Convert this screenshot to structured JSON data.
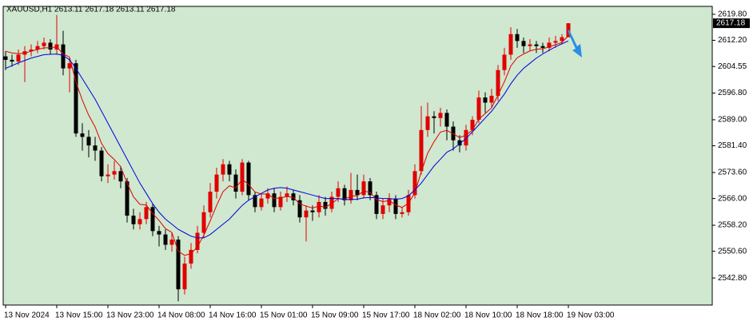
{
  "chart_data": {
    "type": "candlestick",
    "title": "XAUUSD,H1  2613.11 2617.18 2613.11 2617.18",
    "categories": [
      "13 Nov 2024",
      null,
      null,
      null,
      null,
      null,
      null,
      null,
      "13 Nov 15:00",
      null,
      null,
      null,
      null,
      null,
      null,
      null,
      "13 Nov 23:00",
      null,
      null,
      null,
      null,
      null,
      null,
      null,
      "14 Nov 08:00",
      null,
      null,
      null,
      null,
      null,
      null,
      null,
      "14 Nov 16:00",
      null,
      null,
      null,
      null,
      null,
      null,
      null,
      "15 Nov 01:00",
      null,
      null,
      null,
      null,
      null,
      null,
      null,
      "15 Nov 09:00",
      null,
      null,
      null,
      null,
      null,
      null,
      null,
      "15 Nov 17:00",
      null,
      null,
      null,
      null,
      null,
      null,
      null,
      "18 Nov 02:00",
      null,
      null,
      null,
      null,
      null,
      null,
      null,
      "18 Nov 10:00",
      null,
      null,
      null,
      null,
      null,
      null,
      null,
      "18 Nov 18:00",
      null,
      null,
      null,
      null,
      null,
      null,
      null,
      "19 Nov 03:00"
    ],
    "open": [
      2607.5,
      2606.5,
      2606,
      2608,
      2609,
      2609.5,
      2610.5,
      2611.5,
      2609.5,
      2611,
      2604,
      2605.5,
      2585,
      2584,
      2581.5,
      2580,
      2572.5,
      2573,
      2574,
      2571,
      2561,
      2558.5,
      2560,
      2563.5,
      2556.5,
      2555.5,
      2552.5,
      2554,
      2539.5,
      2547,
      2551,
      2556,
      2562,
      2568,
      2573,
      2576,
      2573,
      2568,
      2576.5,
      2567,
      2563.5,
      2566,
      2567.5,
      2563.5,
      2566.5,
      2567.5,
      2565.5,
      2560.5,
      2562.5,
      2562,
      2565,
      2563,
      2566.5,
      2569,
      2565.5,
      2568.5,
      2567,
      2571,
      2567,
      2561.5,
      2564,
      2566,
      2561.5,
      2562,
      2567,
      2574,
      2586,
      2590,
      2589.5,
      2591,
      2587,
      2583,
      2581.5,
      2586,
      2589,
      2595.5,
      2594,
      2596,
      2603.5,
      2608,
      2614,
      2612,
      2610.5,
      2611,
      2610.5,
      2610,
      2611.5,
      2612,
      2613.11
    ],
    "high": [
      2609,
      2608,
      2609.5,
      2610.5,
      2611,
      2612,
      2613,
      2612.5,
      2619.6,
      2615,
      2607,
      2606.5,
      2588,
      2586,
      2584,
      2581,
      2576,
      2577,
      2575.5,
      2572,
      2563,
      2562,
      2565,
      2564.5,
      2558,
      2557,
      2556,
      2555,
      2549,
      2553,
      2558,
      2564,
      2570.5,
      2575,
      2577.5,
      2577,
      2574.5,
      2577.5,
      2577,
      2568,
      2567.5,
      2569,
      2569,
      2568,
      2569.5,
      2568.5,
      2567,
      2564,
      2564,
      2567,
      2566.5,
      2568,
      2571,
      2570,
      2573.5,
      2573,
      2573,
      2572,
      2568,
      2566,
      2567.5,
      2567,
      2563.5,
      2568.5,
      2576,
      2593,
      2594,
      2591.5,
      2592.5,
      2592,
      2588.5,
      2584.5,
      2587.5,
      2590,
      2597.5,
      2597,
      2598,
      2605,
      2610,
      2616,
      2615.5,
      2613,
      2612.5,
      2612,
      2611.5,
      2613,
      2613.5,
      2614,
      2617.18
    ],
    "low": [
      2603.5,
      2604.5,
      2605,
      2600,
      2607.5,
      2608.5,
      2609.5,
      2608,
      2608,
      2602,
      2597,
      2584,
      2580,
      2578,
      2577,
      2571,
      2570.5,
      2571.5,
      2569,
      2559,
      2557,
      2557,
      2558.5,
      2555,
      2552,
      2551,
      2550.5,
      2536,
      2538,
      2545.5,
      2550,
      2554.5,
      2560.5,
      2566,
      2571,
      2571,
      2566,
      2567,
      2565.5,
      2562,
      2562.5,
      2564.5,
      2562,
      2562.5,
      2565,
      2564,
      2559,
      2553.5,
      2559.5,
      2560.5,
      2561,
      2562,
      2565,
      2564,
      2564.5,
      2565.5,
      2566,
      2565.5,
      2560,
      2560,
      2562,
      2560,
      2560.5,
      2561,
      2566,
      2573,
      2584,
      2585,
      2587,
      2583,
      2580,
      2579.5,
      2580,
      2584.5,
      2588,
      2591,
      2592.5,
      2594.5,
      2602,
      2606.5,
      2610,
      2608.5,
      2609,
      2608.5,
      2608.5,
      2609,
      2610,
      2611,
      2613.11
    ],
    "close": [
      2606.5,
      2606,
      2608,
      2609,
      2609.5,
      2610.5,
      2611.5,
      2609.5,
      2611,
      2604,
      2605.5,
      2585,
      2584,
      2581.5,
      2580,
      2572.5,
      2573,
      2574,
      2571,
      2561,
      2558.5,
      2560,
      2563.5,
      2556.5,
      2555.5,
      2552.5,
      2554,
      2539.5,
      2547,
      2551,
      2556,
      2562,
      2568,
      2573,
      2576,
      2573,
      2568,
      2576.5,
      2567,
      2563.5,
      2566,
      2567.5,
      2563.5,
      2566.5,
      2567.5,
      2565.5,
      2560.5,
      2562.5,
      2562,
      2565,
      2563,
      2566.5,
      2569,
      2565.5,
      2568.5,
      2567,
      2571,
      2567,
      2561.5,
      2564,
      2566,
      2561.5,
      2562,
      2567,
      2574,
      2586,
      2590,
      2589.5,
      2591,
      2587,
      2583,
      2581.5,
      2586,
      2589,
      2595.5,
      2594,
      2596,
      2603.5,
      2608,
      2614,
      2612,
      2610.5,
      2611,
      2610.5,
      2610,
      2611.5,
      2612,
      2613.11,
      2617.18
    ],
    "up_color": "#e00000",
    "down_color": "#000000",
    "overlays": [
      {
        "color": "#e00000",
        "values": [
          2609,
          2608.5,
          2608.3,
          2608.5,
          2609,
          2609.5,
          2610,
          2610,
          2610.3,
          2608.2,
          2607.3,
          2600,
          2594.7,
          2590.3,
          2586.9,
          2582.1,
          2579.1,
          2577.4,
          2575.3,
          2570.5,
          2566.5,
          2564.3,
          2564.1,
          2561.6,
          2559.6,
          2557.2,
          2556.1,
          2550.6,
          2549.4,
          2549.9,
          2551.9,
          2555.3,
          2559.5,
          2564,
          2568,
          2569.7,
          2569.1,
          2571.6,
          2570.1,
          2567.9,
          2567.3,
          2567.3,
          2566,
          2566.2,
          2566.6,
          2566.3,
          2564.4,
          2563.8,
          2563.2,
          2563.8,
          2563.5,
          2564.5,
          2566,
          2565.8,
          2566.7,
          2566.8,
          2568.2,
          2567.8,
          2565.7,
          2565.1,
          2565.4,
          2564.1,
          2563.4,
          2564.6,
          2567.7,
          2573.8,
          2579.2,
          2582.6,
          2585.4,
          2585.9,
          2584.9,
          2583.8,
          2584.5,
          2586,
          2589.2,
          2590.8,
          2592.5,
          2596.2,
          2600.1,
          2604.7,
          2607.1,
          2608.2,
          2609.1,
          2609.6,
          2609.7,
          2610.3,
          2610.9,
          2611.6,
          2613.5
        ]
      },
      {
        "color": "#0000e0",
        "values": [
          2604,
          2604.8,
          2605.6,
          2606.3,
          2607,
          2607.5,
          2608,
          2608.1,
          2608.2,
          2607.8,
          2606.5,
          2604,
          2601,
          2598,
          2595,
          2591.5,
          2588,
          2584.5,
          2581,
          2577.5,
          2574,
          2570.5,
          2567.5,
          2564.5,
          2562,
          2560,
          2558.5,
          2557,
          2556,
          2555,
          2554.5,
          2554.5,
          2555.5,
          2557,
          2558.5,
          2560,
          2562,
          2564,
          2565.5,
          2566.5,
          2567.5,
          2568.5,
          2569,
          2569.2,
          2569,
          2568.5,
          2568,
          2567.5,
          2567,
          2566.5,
          2566,
          2566,
          2566,
          2565.7,
          2565.7,
          2565.8,
          2566.2,
          2566.3,
          2566.2,
          2566,
          2566,
          2565.8,
          2566,
          2566.8,
          2568.5,
          2570.5,
          2573,
          2575.5,
          2577.5,
          2579.5,
          2580.5,
          2582,
          2583.5,
          2585.5,
          2587.5,
          2589.5,
          2591.5,
          2594,
          2596.5,
          2599.5,
          2602,
          2604,
          2605.5,
          2607,
          2608.2,
          2609.3,
          2610.3,
          2611.2,
          2612
        ]
      }
    ],
    "ylim": [
      2534.9,
      2622.1
    ],
    "yticks": [
      {
        "value": 2619.8,
        "label": "2619.80"
      },
      {
        "value": 2612.2,
        "label": "2612.20"
      },
      {
        "value": 2604.55,
        "label": "2604.55"
      },
      {
        "value": 2596.8,
        "label": "2596.80"
      },
      {
        "value": 2589,
        "label": "2589.00"
      },
      {
        "value": 2581.4,
        "label": "2581.40"
      },
      {
        "value": 2573.6,
        "label": "2573.60"
      },
      {
        "value": 2566,
        "label": "2566.00"
      },
      {
        "value": 2558.2,
        "label": "2558.20"
      },
      {
        "value": 2550.6,
        "label": "2550.60"
      },
      {
        "value": 2542.8,
        "label": "2542.80"
      }
    ],
    "price_marker": 2617.18,
    "background": "#cfe8cf"
  }
}
